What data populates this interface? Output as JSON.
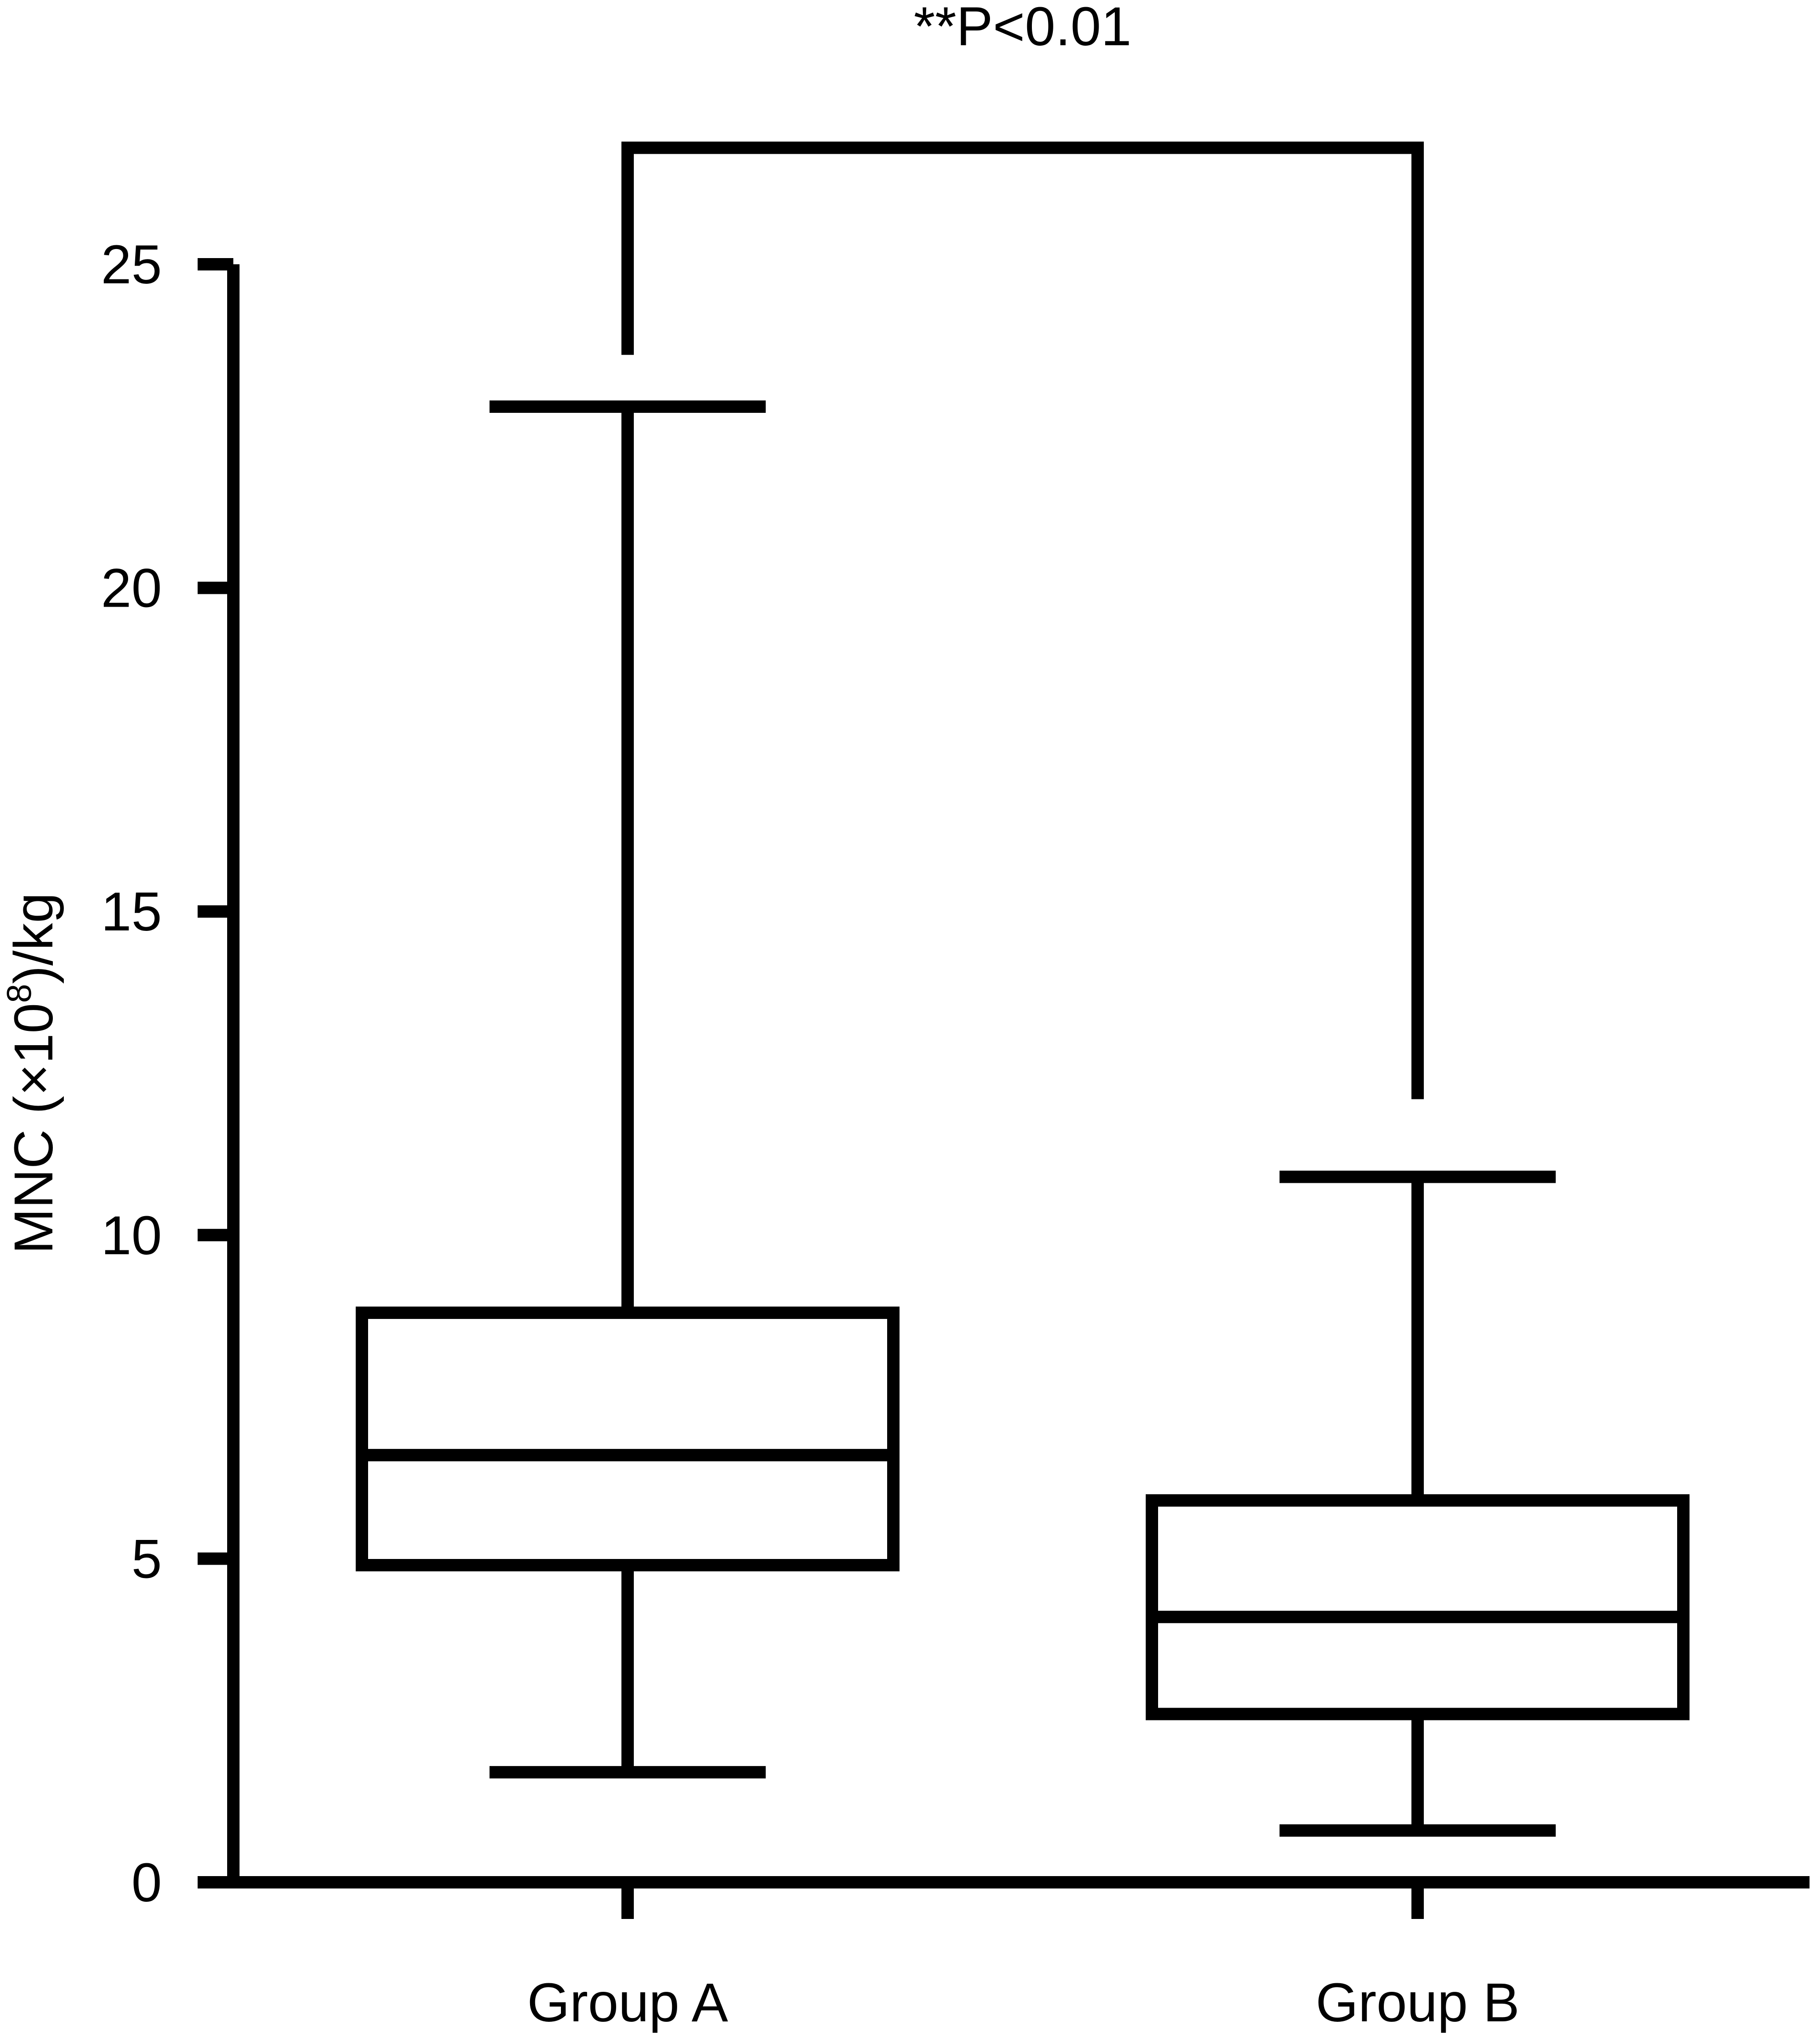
{
  "chart_data": {
    "type": "box",
    "ylabel_parts": {
      "base": "MNC (×10",
      "superscript": "8",
      "suffix": ")/kg"
    },
    "yticks": [
      0,
      5,
      10,
      15,
      20,
      25
    ],
    "ylim": [
      0,
      25
    ],
    "categories": [
      "Group A",
      "Group B"
    ],
    "boxes": [
      {
        "category": "Group A",
        "min": 1.7,
        "q1": 4.9,
        "median": 6.6,
        "q3": 8.8,
        "max": 22.8
      },
      {
        "category": "Group B",
        "min": 0.8,
        "q1": 2.6,
        "median": 4.1,
        "q3": 5.9,
        "max": 10.9
      }
    ],
    "significance": {
      "label": "**P<0.01",
      "left_top": 23.6,
      "right_top": 12.1,
      "bracket": 26.8
    },
    "grid": false,
    "legend": "none",
    "color": "#000000"
  }
}
